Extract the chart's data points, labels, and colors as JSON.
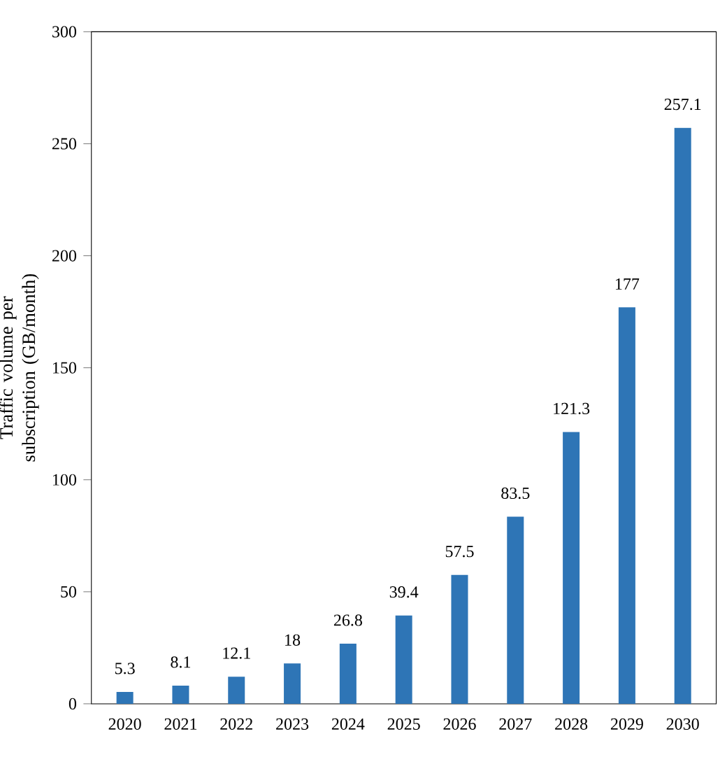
{
  "chart_data": {
    "type": "bar",
    "ylabel": "Traffic volume per subscription (GB/month)",
    "categories": [
      "2020",
      "2021",
      "2022",
      "2023",
      "2024",
      "2025",
      "2026",
      "2027",
      "2028",
      "2029",
      "2030"
    ],
    "values": [
      5.3,
      8.1,
      12.1,
      18,
      26.8,
      39.4,
      57.5,
      83.5,
      121.3,
      177,
      257.1
    ],
    "value_labels": [
      "5.3",
      "8.1",
      "12.1",
      "18",
      "26.8",
      "39.4",
      "57.5",
      "83.5",
      "121.3",
      "177",
      "257.1"
    ],
    "color": "#2e75b6",
    "ylim": [
      0,
      300
    ],
    "yticks": [
      0,
      50,
      100,
      150,
      200,
      250,
      300
    ],
    "grid": false
  }
}
